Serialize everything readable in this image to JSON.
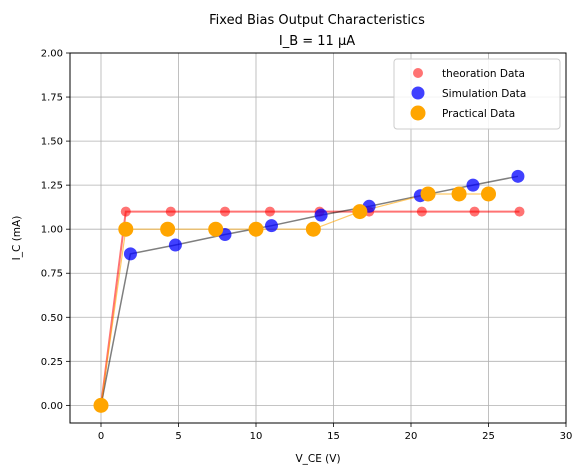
{
  "chart_data": {
    "type": "scatter",
    "title": "Fixed Bias Output Characteristics",
    "subtitle": "I_B = 11 µA",
    "xlabel": "V_CE (V)",
    "ylabel": "I_C (mA)",
    "xlim": [
      -2,
      30
    ],
    "ylim": [
      -0.1,
      2.0
    ],
    "xticks": [
      "0",
      "5",
      "10",
      "15",
      "20",
      "25",
      "30"
    ],
    "yticks": [
      "0.00",
      "0.25",
      "0.50",
      "0.75",
      "1.00",
      "1.25",
      "1.50",
      "1.75",
      "2.00"
    ],
    "grid": true,
    "legend_position": "top-right",
    "series": [
      {
        "name": "theoration Data",
        "color": "#ff0000",
        "line_color": "#ff0000",
        "x": [
          0,
          1.6,
          4.5,
          8.0,
          10.9,
          14.1,
          17.3,
          20.7,
          24.1,
          27.0
        ],
        "y": [
          0,
          1.1,
          1.1,
          1.1,
          1.1,
          1.1,
          1.1,
          1.1,
          1.1,
          1.1
        ]
      },
      {
        "name": "Simulation Data",
        "color": "#0000ff",
        "line_color": "#000000",
        "x": [
          0,
          1.9,
          4.8,
          8.0,
          11.0,
          14.2,
          17.3,
          20.6,
          24.0,
          26.9
        ],
        "y": [
          0,
          0.86,
          0.91,
          0.97,
          1.02,
          1.08,
          1.13,
          1.19,
          1.25,
          1.3
        ]
      },
      {
        "name": "Practical Data",
        "color": "#ffa500",
        "line_color": "#ffa500",
        "x": [
          0,
          1.6,
          4.3,
          7.4,
          10.0,
          13.7,
          16.7,
          21.1,
          23.1,
          25.0
        ],
        "y": [
          0,
          1.0,
          1.0,
          1.0,
          1.0,
          1.0,
          1.1,
          1.2,
          1.2,
          1.2
        ]
      }
    ]
  }
}
